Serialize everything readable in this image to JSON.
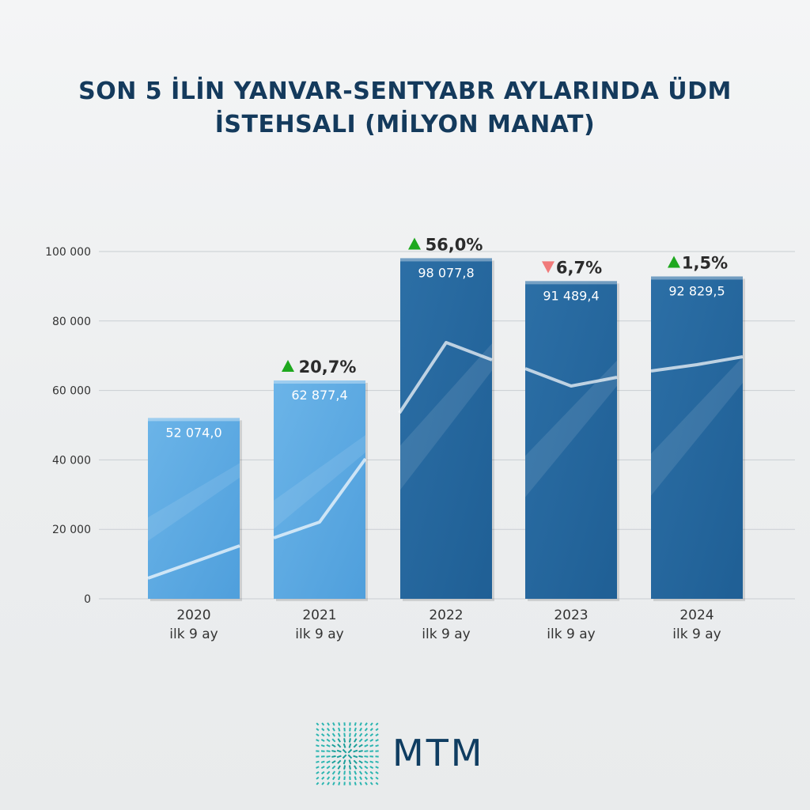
{
  "title_line1": "SON 5 İLİN YANVAR-SENTYABR AYLARINDA ÜDM",
  "title_line2": "İSTEHSALI (MİLYON MANAT)",
  "brand": "MTM",
  "colors": {
    "light_bar": "#4f9fdc",
    "dark_bar": "#1f5f95",
    "up": "#1ea81e",
    "down": "#f07a7a",
    "title": "#143a5c"
  },
  "chart_data": {
    "type": "bar",
    "categories": [
      "2020",
      "2021",
      "2022",
      "2023",
      "2024"
    ],
    "category_sublabel": "ilk  9  ay",
    "values": [
      52074.0,
      62877.4,
      98077.8,
      91489.4,
      92829.5
    ],
    "value_labels": [
      "52 074,0",
      "62 877,4",
      "98 077,8",
      "91 489,4",
      "92 829,5"
    ],
    "changes": [
      null,
      {
        "direction": "up",
        "label": "20,7%"
      },
      {
        "direction": "up",
        "label": "56,0%"
      },
      {
        "direction": "down",
        "label": "6,7%"
      },
      {
        "direction": "up",
        "label": "1,5%"
      }
    ],
    "yticks": [
      0,
      20000,
      40000,
      60000,
      80000,
      100000
    ],
    "ytick_labels": [
      "0",
      "20 000",
      "40 000",
      "60 000",
      "80 000",
      "100 000"
    ],
    "ylim": [
      0,
      100000
    ],
    "grid": true
  }
}
